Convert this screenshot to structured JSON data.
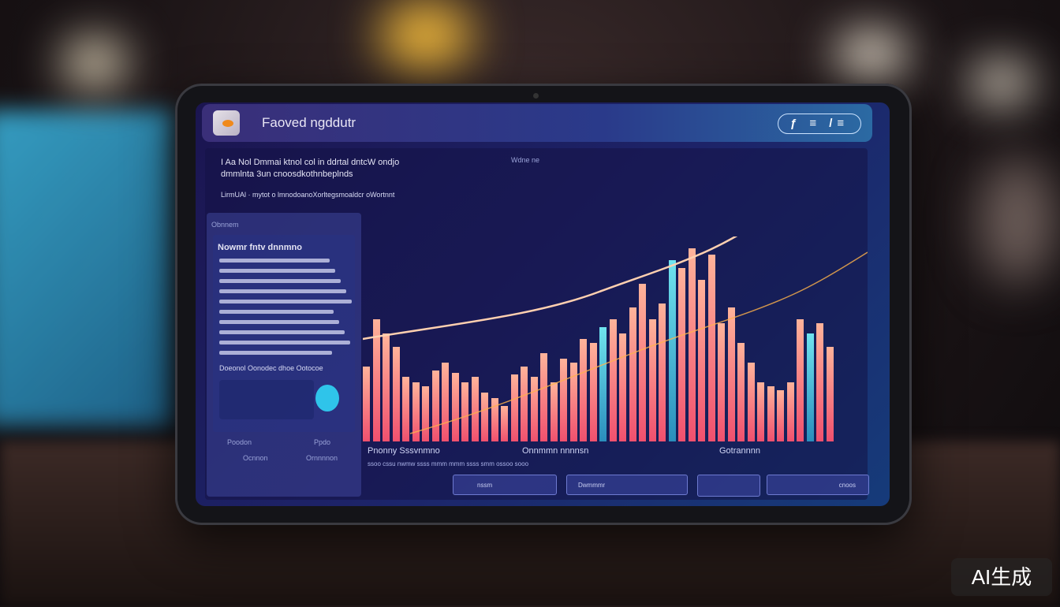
{
  "app": {
    "title": "Faoved ngddutr",
    "nav_icons": "ƒ ≡ /≡"
  },
  "header_text": {
    "line1": "I Aa Nol Dmmai ktnol col in ddrtal dntcW ondjo",
    "line2": "dmmlnta 3un cnoosdkothnbeplnds",
    "line3": "LirmUAl · mytot o lmnodoanoXorltegsmoaldcr oWortnnt",
    "right_label": "Wdne ne"
  },
  "side_panel": {
    "label": "Obnnem",
    "card_title": "Nowmr fntv dnnmno",
    "footer_line": "Doeonol Oonodec dhoe Ootocoe",
    "bottom_labels": [
      "Poodon",
      "Ppdo",
      "Ocnnon",
      "Ornnnnon"
    ]
  },
  "chart": {
    "bars": [
      0.38,
      0.62,
      0.55,
      0.48,
      0.33,
      0.3,
      0.28,
      0.36,
      0.4,
      0.35,
      0.3,
      0.33,
      0.25,
      0.22,
      0.18,
      0.34,
      0.38,
      0.33,
      0.45,
      0.3,
      0.42,
      0.4,
      0.52,
      0.5,
      0.58,
      0.62,
      0.55,
      0.68,
      0.8,
      0.62,
      0.7,
      0.92,
      0.88,
      0.98,
      0.82,
      0.95,
      0.6,
      0.68,
      0.5,
      0.4,
      0.3,
      0.28,
      0.26,
      0.3,
      0.62,
      0.55,
      0.6,
      0.48
    ],
    "colors": {
      "bar": "#f0506e",
      "accent": "#6fe3ee",
      "trend": "#ffd0b0"
    }
  },
  "stats": {
    "labels": [
      "Pnonny  Sssvnmno",
      "Onnmmn nnnnsn",
      "Gotrannnn"
    ],
    "sub": "ssoo  cssu  nwmw  ssss  mmm  mmm  ssss  smm  ossoo  sooo"
  },
  "buttons": [
    "nssm",
    "Dwmmmr",
    "",
    "cnoos"
  ],
  "watermark": "AI生成"
}
